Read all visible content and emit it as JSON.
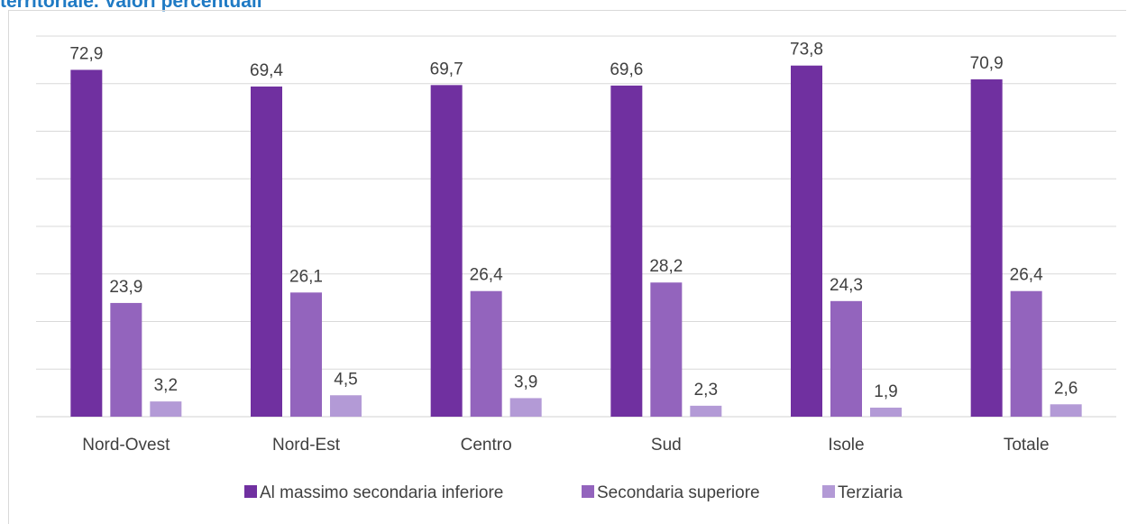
{
  "title": "territoriale. Valori percentuali",
  "chart_data": {
    "type": "bar",
    "categories": [
      "Nord-Ovest",
      "Nord-Est",
      "Centro",
      "Sud",
      "Isole",
      "Totale"
    ],
    "series": [
      {
        "name": "Al massimo secondaria inferiore",
        "color": "#7030a0",
        "values": [
          72.9,
          69.4,
          69.7,
          69.6,
          73.8,
          70.9
        ],
        "labels": [
          "72,9",
          "69,4",
          "69,7",
          "69,6",
          "73,8",
          "70,9"
        ]
      },
      {
        "name": "Secondaria superiore",
        "color": "#9364bd",
        "values": [
          23.9,
          26.1,
          26.4,
          28.2,
          24.3,
          26.4
        ],
        "labels": [
          "23,9",
          "26,1",
          "26,4",
          "28,2",
          "24,3",
          "26,4"
        ]
      },
      {
        "name": "Terziaria",
        "color": "#b39ad6",
        "values": [
          3.2,
          4.5,
          3.9,
          2.3,
          1.9,
          2.6
        ],
        "labels": [
          "3,2",
          "4,5",
          "3,9",
          "2,3",
          "1,9",
          "2,6"
        ]
      }
    ],
    "ylim": [
      0,
      80
    ],
    "grid": true,
    "legend": "bottom-center",
    "xlabel": "",
    "ylabel": ""
  }
}
